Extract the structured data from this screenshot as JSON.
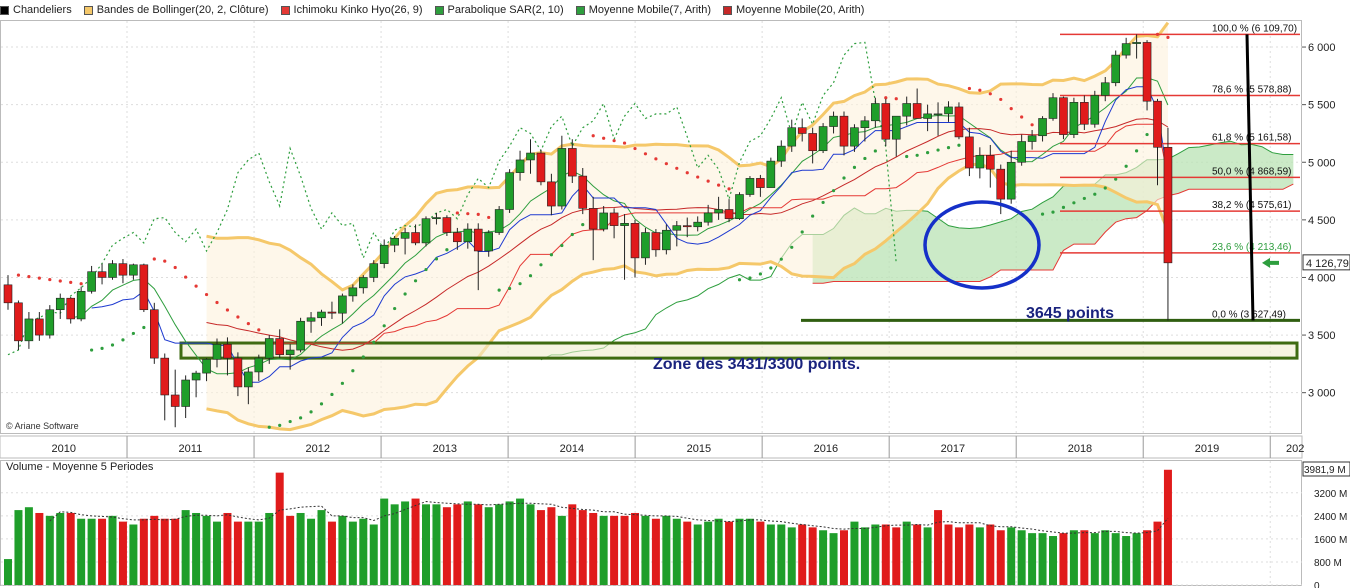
{
  "legend": [
    {
      "label": "Chandeliers",
      "color": "#000000"
    },
    {
      "label": "Bandes de Bollinger(20, 2, Clôture)",
      "color": "#f5c86a"
    },
    {
      "label": "Ichimoku Kinko Hyo(26, 9)",
      "color": "#e53935"
    },
    {
      "label": "Parabolique SAR(2, 10)",
      "color": "#2e9e3e"
    },
    {
      "label": "Moyenne Mobile(7, Arith)",
      "color": "#2e9e3e"
    },
    {
      "label": "Moyenne Mobile(20, Arith)",
      "color": "#c62828"
    }
  ],
  "annotations": {
    "copyright": "© Ariane Software",
    "points": "3645 points",
    "zone": "Zone des 3431/3300 points.",
    "volume_title": "Volume  - Moyenne 5 Periodes"
  },
  "colors": {
    "up": "#1f9e2a",
    "down": "#e01b1b",
    "bollinger": "#f5c86a",
    "cloud": "#b9e3b4",
    "circle": "#1530c8"
  },
  "chart_data": [
    {
      "type": "candlestick",
      "title": "",
      "ylim": [
        2650,
        6200
      ],
      "y_ticks": [
        3000,
        3500,
        4000,
        4500,
        5000,
        5500,
        6000
      ],
      "y_tick_labels": [
        "3 000",
        "3 500",
        "4 000",
        "4 500",
        "5 000",
        "5 500",
        "6 000"
      ],
      "x_ticks": [
        "2010",
        "2011",
        "2012",
        "2013",
        "2014",
        "2015",
        "2016",
        "2017",
        "2018",
        "2019",
        "202"
      ],
      "x_range": [
        2010.0,
        2020.25
      ],
      "grid": true,
      "last_price_label": "4 126,79",
      "fibonacci": [
        {
          "label": "100,0 % (6 109,70)",
          "value": 6109.7
        },
        {
          "label": "78,6 % (5 578,88)",
          "value": 5578.88
        },
        {
          "label": "61,8 % (5 161,58)",
          "value": 5161.58
        },
        {
          "label": "50,0 % (4 868,59)",
          "value": 4868.59
        },
        {
          "label": "38,2 % (4 575,61)",
          "value": 4575.61
        },
        {
          "label": "23,6 % (4 213,46)",
          "value": 4213.46
        },
        {
          "label": "0,0 % (3 627,49)",
          "value": 3627.49
        }
      ],
      "candles_ohlc": [
        [
          3936,
          4020,
          3720,
          3780
        ],
        [
          3780,
          3800,
          3370,
          3450
        ],
        [
          3450,
          3700,
          3380,
          3640
        ],
        [
          3640,
          3700,
          3450,
          3500
        ],
        [
          3500,
          3760,
          3470,
          3720
        ],
        [
          3720,
          3860,
          3640,
          3820
        ],
        [
          3820,
          3830,
          3600,
          3640
        ],
        [
          3640,
          3920,
          3620,
          3880
        ],
        [
          3880,
          4100,
          3860,
          4050
        ],
        [
          4050,
          4120,
          3940,
          4000
        ],
        [
          4000,
          4150,
          3980,
          4120
        ],
        [
          4120,
          4160,
          3950,
          4020
        ],
        [
          4020,
          4120,
          3980,
          4110
        ],
        [
          4110,
          4120,
          3700,
          3720
        ],
        [
          3720,
          3780,
          3250,
          3300
        ],
        [
          3300,
          3340,
          2760,
          2980
        ],
        [
          2980,
          3200,
          2700,
          2880
        ],
        [
          2880,
          3150,
          2780,
          3110
        ],
        [
          3110,
          3190,
          2960,
          3170
        ],
        [
          3170,
          3300,
          3100,
          3290
        ],
        [
          3290,
          3470,
          3220,
          3420
        ],
        [
          3420,
          3480,
          3150,
          3300
        ],
        [
          3300,
          3350,
          2970,
          3050
        ],
        [
          3050,
          3220,
          2900,
          3180
        ],
        [
          3180,
          3330,
          3100,
          3300
        ],
        [
          3300,
          3500,
          3250,
          3470
        ],
        [
          3470,
          3550,
          3300,
          3330
        ],
        [
          3330,
          3420,
          3200,
          3370
        ],
        [
          3370,
          3650,
          3350,
          3620
        ],
        [
          3620,
          3700,
          3520,
          3650
        ],
        [
          3650,
          3720,
          3580,
          3700
        ],
        [
          3700,
          3790,
          3640,
          3690
        ],
        [
          3690,
          3860,
          3600,
          3840
        ],
        [
          3840,
          3940,
          3790,
          3910
        ],
        [
          3910,
          4020,
          3860,
          4000
        ],
        [
          4000,
          4150,
          3960,
          4120
        ],
        [
          4120,
          4330,
          4080,
          4280
        ],
        [
          4280,
          4360,
          4220,
          4340
        ],
        [
          4340,
          4430,
          4200,
          4390
        ],
        [
          4390,
          4460,
          4280,
          4300
        ],
        [
          4300,
          4530,
          4270,
          4510
        ],
        [
          4510,
          4560,
          4460,
          4520
        ],
        [
          4520,
          4540,
          4360,
          4390
        ],
        [
          4390,
          4430,
          4240,
          4310
        ],
        [
          4310,
          4470,
          4250,
          4420
        ],
        [
          4420,
          4470,
          3890,
          4230
        ],
        [
          4230,
          4410,
          4180,
          4390
        ],
        [
          4390,
          4620,
          4370,
          4590
        ],
        [
          4590,
          4940,
          4560,
          4910
        ],
        [
          4910,
          5100,
          4840,
          5020
        ],
        [
          5020,
          5200,
          4900,
          5080
        ],
        [
          5080,
          5110,
          4800,
          4830
        ],
        [
          4830,
          4900,
          4540,
          4620
        ],
        [
          4620,
          5230,
          4590,
          5120
        ],
        [
          5120,
          5200,
          4820,
          4880
        ],
        [
          4880,
          4950,
          4550,
          4600
        ],
        [
          4600,
          4700,
          4150,
          4420
        ],
        [
          4420,
          4620,
          4400,
          4560
        ],
        [
          4560,
          4600,
          4340,
          4450
        ],
        [
          4450,
          4550,
          3980,
          4470
        ],
        [
          4470,
          4500,
          4000,
          4170
        ],
        [
          4170,
          4430,
          4110,
          4390
        ],
        [
          4390,
          4420,
          4180,
          4240
        ],
        [
          4240,
          4460,
          4200,
          4410
        ],
        [
          4410,
          4490,
          4270,
          4450
        ],
        [
          4450,
          4520,
          4350,
          4440
        ],
        [
          4440,
          4530,
          4400,
          4480
        ],
        [
          4480,
          4630,
          4450,
          4560
        ],
        [
          4560,
          4700,
          4500,
          4590
        ],
        [
          4590,
          4680,
          4480,
          4510
        ],
        [
          4510,
          4740,
          4500,
          4720
        ],
        [
          4720,
          4880,
          4700,
          4860
        ],
        [
          4860,
          4890,
          4700,
          4780
        ],
        [
          4780,
          5040,
          4780,
          5010
        ],
        [
          5010,
          5190,
          4960,
          5140
        ],
        [
          5140,
          5370,
          5090,
          5300
        ],
        [
          5300,
          5380,
          5180,
          5250
        ],
        [
          5250,
          5300,
          4990,
          5100
        ],
        [
          5100,
          5340,
          5080,
          5310
        ],
        [
          5310,
          5440,
          5250,
          5400
        ],
        [
          5400,
          5440,
          5060,
          5140
        ],
        [
          5140,
          5330,
          5090,
          5300
        ],
        [
          5300,
          5400,
          5180,
          5360
        ],
        [
          5360,
          5560,
          5300,
          5510
        ],
        [
          5510,
          5550,
          5140,
          5200
        ],
        [
          5200,
          5380,
          5050,
          5400
        ],
        [
          5400,
          5570,
          5320,
          5510
        ],
        [
          5510,
          5640,
          5430,
          5380
        ],
        [
          5380,
          5500,
          5270,
          5420
        ],
        [
          5420,
          5520,
          5230,
          5420
        ],
        [
          5420,
          5530,
          5350,
          5480
        ],
        [
          5480,
          5520,
          5200,
          5220
        ],
        [
          5220,
          5300,
          4880,
          4950
        ],
        [
          4950,
          5130,
          4860,
          5060
        ],
        [
          5060,
          5150,
          4780,
          4940
        ],
        [
          4940,
          4980,
          4550,
          4680
        ],
        [
          4680,
          5100,
          4640,
          5000
        ],
        [
          5000,
          5240,
          4970,
          5180
        ],
        [
          5180,
          5280,
          5110,
          5230
        ],
        [
          5230,
          5400,
          5180,
          5380
        ],
        [
          5380,
          5600,
          5360,
          5560
        ],
        [
          5560,
          5570,
          5200,
          5240
        ],
        [
          5240,
          5560,
          5210,
          5520
        ],
        [
          5520,
          5580,
          5280,
          5330
        ],
        [
          5330,
          5620,
          5300,
          5580
        ],
        [
          5580,
          5740,
          5530,
          5690
        ],
        [
          5690,
          5970,
          5660,
          5930
        ],
        [
          5930,
          6080,
          5900,
          6030
        ],
        [
          6030,
          6110,
          5900,
          6040
        ],
        [
          6040,
          6060,
          5450,
          5530
        ],
        [
          5530,
          5550,
          4800,
          5130
        ],
        [
          5130,
          5300,
          3627,
          4127
        ]
      ],
      "volume": {
        "ylim": [
          0,
          4200
        ],
        "y_ticks": [
          0,
          800,
          1600,
          2400,
          3200
        ],
        "y_tick_labels": [
          "0",
          "800 M",
          "1600 M",
          "2400 M",
          "3200 M"
        ],
        "last_label": "3981,9 M",
        "values": [
          900,
          2600,
          2700,
          2500,
          2400,
          2500,
          2500,
          2300,
          2300,
          2300,
          2400,
          2200,
          2100,
          2300,
          2400,
          2300,
          2300,
          2600,
          2500,
          2400,
          2200,
          2500,
          2200,
          2200,
          2200,
          2500,
          3900,
          2400,
          2500,
          2300,
          2600,
          2200,
          2400,
          2200,
          2300,
          2100,
          3000,
          2800,
          2900,
          3000,
          2800,
          2800,
          2700,
          2800,
          2900,
          2800,
          2700,
          2800,
          2900,
          3000,
          2800,
          2600,
          2700,
          2400,
          2800,
          2600,
          2500,
          2400,
          2400,
          2400,
          2500,
          2400,
          2300,
          2400,
          2300,
          2200,
          2100,
          2200,
          2300,
          2200,
          2300,
          2300,
          2200,
          2100,
          2100,
          2000,
          2100,
          2000,
          1900,
          1800,
          1900,
          2200,
          2000,
          2100,
          2100,
          2000,
          2200,
          2100,
          2000,
          2600,
          2100,
          2000,
          2100,
          2000,
          2100,
          1900,
          2000,
          1900,
          1800,
          1800,
          1700,
          1800,
          1900,
          1900,
          1800,
          1900,
          1800,
          1700,
          1800,
          1900,
          2200,
          4000
        ],
        "up": [
          true,
          true,
          true,
          false,
          true,
          true,
          false,
          true,
          true,
          false,
          true,
          false,
          true,
          false,
          false,
          false,
          false,
          true,
          true,
          true,
          true,
          false,
          false,
          true,
          true,
          true,
          false,
          false,
          true,
          true,
          true,
          false,
          true,
          true,
          true,
          true,
          true,
          true,
          true,
          false,
          true,
          true,
          false,
          false,
          true,
          false,
          true,
          true,
          true,
          true,
          true,
          false,
          false,
          true,
          false,
          false,
          false,
          true,
          false,
          false,
          false,
          true,
          false,
          true,
          true,
          false,
          true,
          true,
          true,
          false,
          true,
          true,
          false,
          true,
          true,
          true,
          false,
          false,
          true,
          true,
          false,
          true,
          true,
          true,
          false,
          false,
          true,
          false,
          true,
          false,
          false,
          false,
          false,
          true,
          false,
          false,
          true,
          true,
          true,
          true,
          true,
          false,
          true,
          false,
          true,
          true,
          true,
          true,
          true,
          false,
          false,
          false
        ]
      }
    }
  ]
}
